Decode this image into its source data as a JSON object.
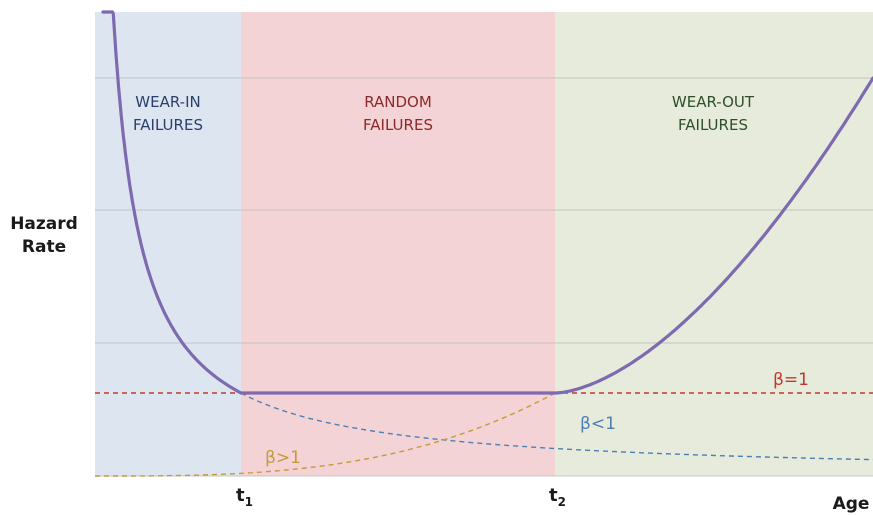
{
  "axes": {
    "y_label_line1": "Hazard",
    "y_label_line2": "Rate",
    "x_label": "Age"
  },
  "regions": {
    "wear_in": {
      "line1": "WEAR-IN",
      "line2": "FAILURES",
      "fill": "#dde6f0",
      "text_color": "#2b3f6b"
    },
    "random": {
      "line1": "RANDOM",
      "line2": "FAILURES",
      "fill": "#f4d3d6",
      "text_color": "#8b2a2a"
    },
    "wear_out": {
      "line1": "WEAR-OUT",
      "line2": "FAILURES",
      "fill": "#e6ebdc",
      "text_color": "#2f4f2a"
    }
  },
  "ticks": {
    "t1": {
      "base": "t",
      "sub": "1"
    },
    "t2": {
      "base": "t",
      "sub": "2"
    }
  },
  "curves": {
    "beta_eq_1": {
      "label": "β=1",
      "color": "#c0392b"
    },
    "beta_lt_1": {
      "label": "β<1",
      "color": "#4a7fb5"
    },
    "beta_gt_1": {
      "label": "β>1",
      "color": "#c29b3a"
    },
    "bathtub_color": "#7e6aaf"
  }
}
